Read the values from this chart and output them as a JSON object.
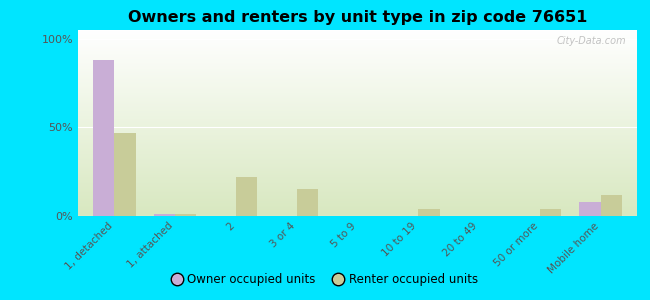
{
  "title": "Owners and renters by unit type in zip code 76651",
  "categories": [
    "1, detached",
    "1, attached",
    "2",
    "3 or 4",
    "5 to 9",
    "10 to 19",
    "20 to 49",
    "50 or more",
    "Mobile home"
  ],
  "owner_values": [
    88,
    1,
    0,
    0,
    0,
    0,
    0,
    0,
    8
  ],
  "renter_values": [
    47,
    1,
    22,
    15,
    0,
    4,
    0,
    4,
    12
  ],
  "owner_color": "#c9aed6",
  "renter_color": "#c8cc99",
  "background_color": "#00e5ff",
  "yticks": [
    0,
    50,
    100
  ],
  "ylim": [
    0,
    105
  ],
  "watermark": "City-Data.com",
  "legend_owner": "Owner occupied units",
  "legend_renter": "Renter occupied units",
  "bar_width": 0.35
}
